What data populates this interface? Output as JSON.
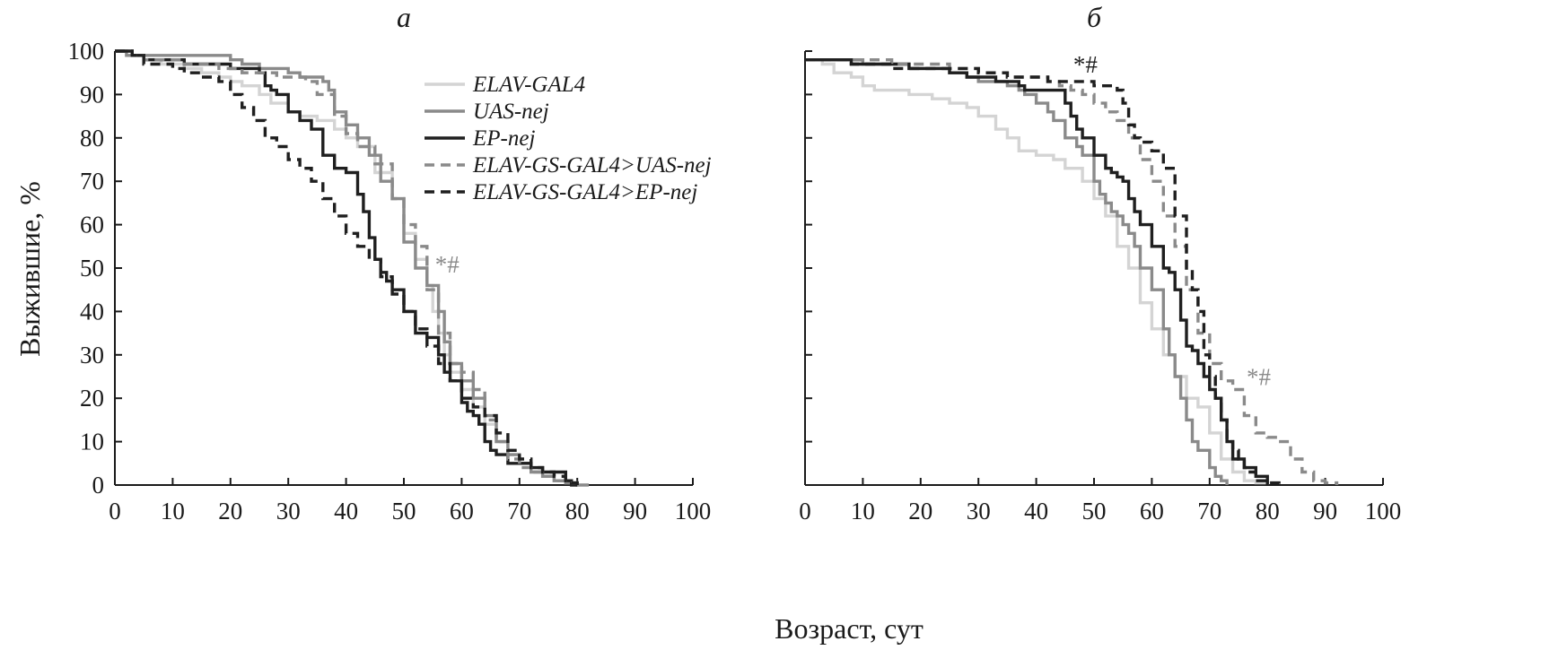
{
  "chart_data": {
    "type": "line",
    "ylabel": "Выжившие, %",
    "xlabel": "Возраст, сут",
    "xlim": [
      0,
      100
    ],
    "ylim": [
      0,
      100
    ],
    "x_ticks": [
      0,
      10,
      20,
      30,
      40,
      50,
      60,
      70,
      80,
      90,
      100
    ],
    "y_ticks": [
      0,
      10,
      20,
      30,
      40,
      50,
      60,
      70,
      80,
      90,
      100
    ],
    "legend": [
      {
        "label": "ELAV-GAL4",
        "color": "#d4d4d4",
        "dash": false
      },
      {
        "label": "UAS-nej",
        "color": "#8a8a8a",
        "dash": false
      },
      {
        "label": "EP-nej",
        "color": "#1f1f1f",
        "dash": false
      },
      {
        "label": "ELAV-GS-GAL4>UAS-nej",
        "color": "#8a8a8a",
        "dash": true
      },
      {
        "label": "ELAV-GS-GAL4>EP-nej",
        "color": "#1f1f1f",
        "dash": true
      }
    ],
    "panels": [
      {
        "title": "а",
        "annotations": [
          {
            "text": "*#",
            "x": 57.5,
            "y": 49,
            "color": "#8a8a8a"
          }
        ],
        "series": [
          {
            "name": "ELAV-GAL4",
            "x": [
              0,
              3,
              5,
              8,
              12,
              15,
              18,
              20,
              22,
              25,
              27,
              30,
              32,
              35,
              38,
              40,
              42,
              45,
              48,
              50,
              52,
              54,
              55,
              56,
              57,
              58,
              60,
              62,
              64,
              66,
              68,
              70,
              72,
              74,
              76,
              78,
              80
            ],
            "y": [
              100,
              99,
              98,
              97,
              96,
              95,
              94,
              93,
              92,
              90,
              88,
              86,
              85,
              84,
              82,
              80,
              78,
              72,
              66,
              58,
              52,
              46,
              40,
              35,
              30,
              26,
              22,
              18,
              14,
              10,
              7,
              5,
              3,
              2,
              1,
              0.5,
              0
            ]
          },
          {
            "name": "UAS-nej",
            "x": [
              0,
              2,
              5,
              8,
              12,
              15,
              18,
              20,
              22,
              25,
              28,
              30,
              32,
              35,
              36,
              37,
              38,
              40,
              42,
              44,
              46,
              48,
              50,
              52,
              54,
              55,
              56,
              57,
              58,
              60,
              62,
              64,
              66,
              68,
              70,
              72,
              74,
              76,
              78,
              80,
              82
            ],
            "y": [
              100,
              99,
              99,
              99,
              99,
              99,
              99,
              98,
              97,
              96,
              96,
              95,
              94,
              94,
              93,
              91,
              86,
              83,
              80,
              76,
              70,
              66,
              56,
              50,
              46,
              46,
              40,
              33,
              28,
              24,
              20,
              16,
              10,
              7,
              5,
              3,
              2,
              1,
              0.5,
              0,
              0
            ]
          },
          {
            "name": "EP-nej",
            "x": [
              0,
              3,
              5,
              8,
              12,
              15,
              18,
              20,
              22,
              25,
              26,
              27,
              28,
              30,
              32,
              34,
              36,
              38,
              40,
              42,
              43,
              44,
              45,
              46,
              47,
              48,
              50,
              52,
              54,
              55,
              56,
              57,
              58,
              60,
              61,
              62,
              63,
              64,
              65,
              66,
              68,
              70,
              72,
              74,
              76,
              78,
              79,
              80
            ],
            "y": [
              100,
              99,
              98,
              98,
              97,
              97,
              97,
              96,
              96,
              95,
              92,
              91,
              90,
              86,
              84,
              82,
              76,
              73,
              72,
              67,
              63,
              57,
              52,
              49,
              47,
              45,
              40,
              35,
              34,
              34,
              30,
              26,
              24,
              19,
              17,
              16,
              14,
              10,
              8,
              7,
              5,
              5,
              4,
              3,
              3,
              1,
              0,
              0
            ]
          },
          {
            "name": "ELAV-GS-GAL4>UAS-nej",
            "x": [
              0,
              3,
              5,
              8,
              12,
              15,
              18,
              20,
              22,
              25,
              28,
              30,
              33,
              35,
              38,
              40,
              42,
              45,
              48,
              50,
              52,
              54,
              56,
              58,
              60,
              62,
              64,
              66,
              68,
              70,
              72,
              74,
              76,
              78,
              80
            ],
            "y": [
              100,
              99,
              98,
              98,
              97,
              97,
              96,
              96,
              95,
              95,
              94,
              94,
              93,
              90,
              85,
              81,
              78,
              74,
              66,
              60,
              55,
              45,
              35,
              28,
              26,
              22,
              15,
              10,
              6,
              4,
              3,
              2,
              1,
              0.5,
              0
            ]
          },
          {
            "name": "ELAV-GS-GAL4>EP-nej",
            "x": [
              0,
              3,
              5,
              8,
              10,
              12,
              15,
              18,
              20,
              22,
              24,
              26,
              28,
              30,
              32,
              34,
              36,
              38,
              40,
              42,
              44,
              46,
              48,
              50,
              52,
              54,
              56,
              58,
              60,
              62,
              64,
              66,
              68,
              70,
              72,
              74,
              76,
              78,
              79,
              80
            ],
            "y": [
              100,
              99,
              97,
              97,
              96,
              95,
              94,
              93,
              90,
              87,
              84,
              80,
              78,
              75,
              73,
              70,
              66,
              62,
              58,
              55,
              52,
              48,
              44,
              40,
              36,
              32,
              28,
              24,
              20,
              18,
              16,
              12,
              8,
              6,
              4,
              3,
              2,
              1,
              0.5,
              0
            ]
          }
        ]
      },
      {
        "title": "б",
        "annotations": [
          {
            "text": "*#",
            "x": 48.5,
            "y": 95,
            "color": "#1f1f1f"
          },
          {
            "text": "*#",
            "x": 78.5,
            "y": 23,
            "color": "#8a8a8a"
          }
        ],
        "series": [
          {
            "name": "ELAV-GAL4",
            "x": [
              0,
              3,
              5,
              8,
              10,
              12,
              15,
              18,
              20,
              22,
              25,
              28,
              30,
              33,
              35,
              37,
              40,
              43,
              45,
              48,
              50,
              52,
              54,
              56,
              58,
              60,
              62,
              64,
              66,
              68,
              70,
              72,
              74,
              76,
              78,
              80
            ],
            "y": [
              98,
              97,
              95,
              94,
              92,
              91,
              91,
              90,
              90,
              89,
              88,
              87,
              85,
              82,
              80,
              77,
              76,
              75,
              73,
              70,
              66,
              62,
              55,
              50,
              42,
              36,
              30,
              25,
              20,
              18,
              12,
              6,
              3,
              1,
              0.5,
              0
            ]
          },
          {
            "name": "UAS-nej",
            "x": [
              0,
              3,
              5,
              8,
              10,
              12,
              15,
              18,
              20,
              22,
              25,
              28,
              30,
              33,
              35,
              37,
              38,
              40,
              42,
              43,
              45,
              47,
              48,
              50,
              51,
              52,
              53,
              54,
              55,
              56,
              57,
              58,
              60,
              62,
              63,
              64,
              65,
              66,
              67,
              68,
              70,
              71,
              72,
              73
            ],
            "y": [
              98,
              98,
              98,
              98,
              97,
              97,
              97,
              96,
              96,
              96,
              95,
              94,
              93,
              93,
              92,
              91,
              90,
              88,
              86,
              84,
              80,
              78,
              76,
              70,
              67,
              65,
              63,
              62,
              60,
              58,
              55,
              50,
              45,
              36,
              30,
              25,
              20,
              15,
              10,
              8,
              4,
              2,
              1,
              0
            ]
          },
          {
            "name": "EP-nej",
            "x": [
              0,
              3,
              5,
              8,
              10,
              12,
              15,
              18,
              20,
              22,
              25,
              28,
              30,
              33,
              35,
              37,
              38,
              40,
              42,
              44,
              45,
              46,
              47,
              48,
              50,
              52,
              53,
              54,
              55,
              56,
              57,
              58,
              60,
              62,
              63,
              64,
              65,
              66,
              67,
              68,
              69,
              70,
              71,
              72,
              73,
              74,
              76,
              78,
              80
            ],
            "y": [
              98,
              98,
              98,
              97,
              97,
              97,
              97,
              96,
              96,
              96,
              95,
              94,
              94,
              93,
              93,
              92,
              91,
              91,
              91,
              91,
              88,
              85,
              82,
              80,
              76,
              73,
              72,
              71,
              70,
              66,
              63,
              60,
              55,
              50,
              49,
              45,
              38,
              32,
              31,
              28,
              25,
              22,
              20,
              15,
              10,
              6,
              4,
              2,
              0
            ]
          },
          {
            "name": "ELAV-GS-GAL4>UAS-nej",
            "x": [
              0,
              3,
              5,
              8,
              10,
              15,
              20,
              25,
              30,
              35,
              40,
              42,
              44,
              46,
              48,
              50,
              52,
              54,
              56,
              58,
              60,
              62,
              64,
              66,
              68,
              70,
              72,
              74,
              76,
              78,
              80,
              82,
              84,
              86,
              88,
              90,
              92
            ],
            "y": [
              98,
              98,
              98,
              98,
              98,
              97,
              97,
              96,
              95,
              94,
              94,
              93,
              92,
              91,
              90,
              88,
              86,
              84,
              80,
              75,
              70,
              62,
              55,
              45,
              35,
              28,
              24,
              22,
              16,
              12,
              11,
              10,
              6,
              3,
              1,
              0.5,
              0
            ]
          },
          {
            "name": "ELAV-GS-GAL4>EP-nej",
            "x": [
              0,
              3,
              5,
              8,
              10,
              15,
              20,
              25,
              30,
              35,
              40,
              42,
              44,
              46,
              48,
              50,
              52,
              54,
              55,
              56,
              57,
              58,
              60,
              62,
              64,
              66,
              67,
              68,
              69,
              70,
              71,
              72,
              73,
              74,
              75,
              76,
              77,
              78,
              80,
              82
            ],
            "y": [
              98,
              98,
              98,
              97,
              97,
              96,
              96,
              96,
              95,
              94,
              94,
              93,
              93,
              93,
              93,
              92,
              92,
              91,
              88,
              83,
              80,
              79,
              77,
              73,
              62,
              50,
              45,
              40,
              30,
              25,
              20,
              15,
              10,
              8,
              6,
              4,
              3,
              1,
              0.5,
              0
            ]
          }
        ]
      }
    ]
  }
}
